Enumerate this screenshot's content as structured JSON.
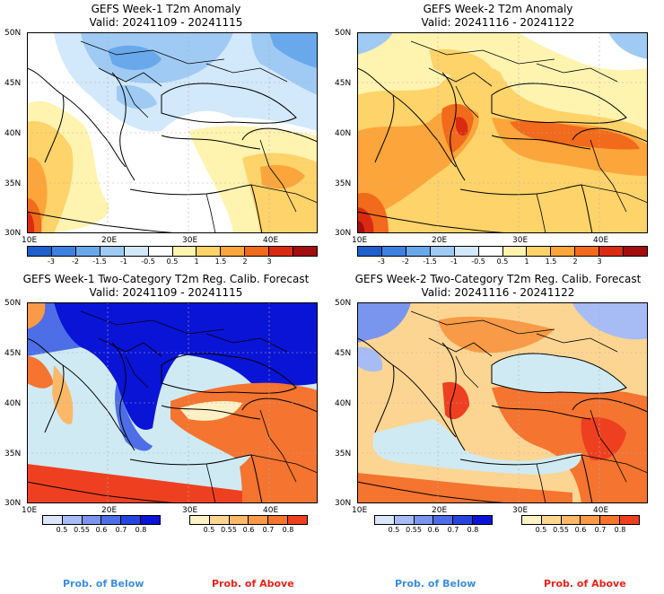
{
  "panels": [
    {
      "line1": "GEFS Week-1 T2m Anomaly",
      "line2": "Valid: 20241109 - 20241115"
    },
    {
      "line1": "GEFS Week-2 T2m Anomaly",
      "line2": "Valid: 20241116 - 20241122"
    },
    {
      "line1": "GEFS Week-1 Two-Category T2m Reg. Calib. Forecast",
      "line2": "Valid: 20241109 - 20241115"
    },
    {
      "line1": "GEFS Week-2 Two-Category T2m Reg. Calib. Forecast",
      "line2": "Valid: 20241116 - 20241122"
    }
  ],
  "lat_ticks": [
    "50N",
    "45N",
    "40N",
    "35N",
    "30N"
  ],
  "lon_ticks": [
    "10E",
    "20E",
    "30E",
    "40E"
  ],
  "anomaly_colorbar": {
    "labels": [
      "-3",
      "-2",
      "-1.5",
      "-1",
      "-0.5",
      "0.5",
      "1",
      "1.5",
      "2",
      "3"
    ],
    "colors": [
      "#1e5fcc",
      "#3d82e0",
      "#6aa8ec",
      "#9fcaf3",
      "#d2e8fb",
      "#ffffff",
      "#fff3b0",
      "#fdd36a",
      "#fba53a",
      "#f26a1b",
      "#d92b12",
      "#a30d0d"
    ]
  },
  "prob_below": {
    "labels": [
      "0.5",
      "0.55",
      "0.6",
      "0.7",
      "0.8"
    ],
    "colors": [
      "#dce6fb",
      "#a7bcf4",
      "#7a95ee",
      "#4d6ee6",
      "#2545de",
      "#0a14d6"
    ],
    "caption": "Prob. of Below"
  },
  "prob_above": {
    "labels": [
      "0.5",
      "0.55",
      "0.6",
      "0.7",
      "0.8"
    ],
    "colors": [
      "#fff1c6",
      "#fdd593",
      "#fbb868",
      "#f89a48",
      "#f47430",
      "#ee4020"
    ],
    "caption": "Prob. of Above"
  },
  "colors": {
    "sea": "#cfeaf2",
    "border": "#000000",
    "grid": "#b0b0b0"
  }
}
